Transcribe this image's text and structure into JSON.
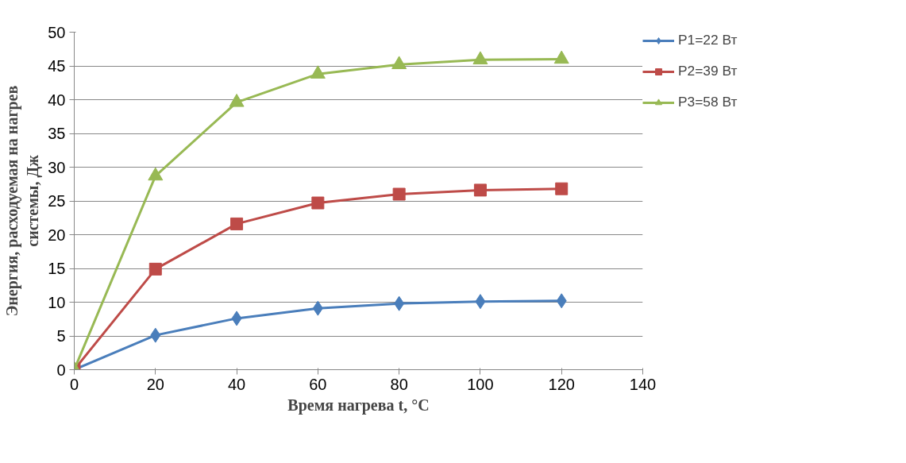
{
  "chart_data": {
    "type": "line",
    "xlabel": "Время нагрева t, °C",
    "ylabel": "Энергия, расходуемая на нагрев\nсистемы, Дж",
    "x": [
      0,
      20,
      40,
      60,
      80,
      100,
      120
    ],
    "series": [
      {
        "name": "P1=22 Вт",
        "color": "#4a7ebb",
        "marker": "diamond",
        "values": [
          0,
          5.1,
          7.6,
          9.1,
          9.8,
          10.1,
          10.2
        ]
      },
      {
        "name": "P2=39 Вт",
        "color": "#be4b48",
        "marker": "square",
        "values": [
          0,
          14.9,
          21.6,
          24.7,
          26.0,
          26.6,
          26.8
        ]
      },
      {
        "name": "P3=58 Вт",
        "color": "#98b954",
        "marker": "triangle",
        "values": [
          0,
          28.7,
          39.6,
          43.8,
          45.2,
          45.9,
          46.0
        ]
      }
    ],
    "xlim": [
      0,
      140
    ],
    "xticks": [
      0,
      20,
      40,
      60,
      80,
      100,
      120,
      140
    ],
    "ylim": [
      0,
      50
    ],
    "yticks": [
      0,
      5,
      10,
      15,
      20,
      25,
      30,
      35,
      40,
      45,
      50
    ],
    "grid": "y",
    "legend": "right",
    "line_style": "solid"
  }
}
